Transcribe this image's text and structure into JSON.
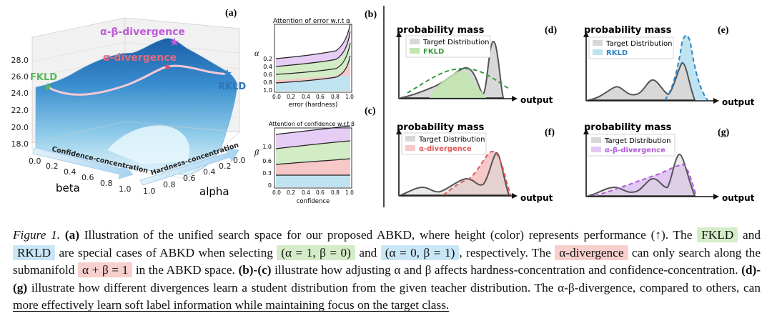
{
  "panel_a": {
    "label": "(a)",
    "points": {
      "fkld": "FKLD",
      "rkld": "RKLD",
      "alpha_div": "α-divergence",
      "alpha_beta_div": "α-β-divergence"
    },
    "z_ticks": [
      "28.0",
      "26.0",
      "24.0",
      "22.0",
      "20.0",
      "18.0"
    ],
    "beta_ticks": [
      "0.0",
      "0.2",
      "0.4",
      "0.6",
      "0.8",
      "1.0"
    ],
    "alpha_ticks": [
      "1.0",
      "0.8",
      "0.6",
      "0.4",
      "0.2",
      "0.0"
    ],
    "beta_label": "beta",
    "alpha_label": "alpha",
    "confidence_arrow": "Confidence-concentration",
    "hardness_arrow": "Hardness-concentration"
  },
  "panel_b": {
    "label": "(b)",
    "title": "Attention of error w.r.t α",
    "ylabel": "α",
    "xlabel": "error (hardness)",
    "y_ticks": [
      "0.2",
      "0.4",
      "0.6",
      "0.8",
      "1.0"
    ],
    "x_ticks": [
      "0.0",
      "0.2",
      "0.4",
      "0.6",
      "0.8",
      "1.0"
    ]
  },
  "panel_c": {
    "label": "(c)",
    "title": "Attention of confidence w.r.t β",
    "ylabel": "β",
    "xlabel": "confidence",
    "y_ticks": [
      "1.0",
      "0.6",
      "0.3",
      "0"
    ],
    "x_ticks": [
      "0.0",
      "0.2",
      "0.4",
      "0.6",
      "0.8",
      "1.0"
    ]
  },
  "distribution_panels": {
    "y_label": "probability mass",
    "x_label": "output",
    "target_legend": "Target Distribution",
    "d": {
      "label": "(d)",
      "legend": "FKLD"
    },
    "e": {
      "label": "(e)",
      "legend": "RKLD"
    },
    "f": {
      "label": "(f)",
      "legend": "α-divergence"
    },
    "g": {
      "label": "(g)",
      "legend": "α-β-divergence"
    }
  },
  "colors": {
    "fkld": "#3a9a3a",
    "rkld": "#2f86c8",
    "alpha_div": "#e05a5a",
    "alpha_beta_div": "#b05ad8",
    "surface_top": "#1f74b8",
    "surface_bottom": "#dff3fb"
  },
  "caption": {
    "figure_label": "Figure 1.",
    "a_label": "(a)",
    "text1": " Illustration of the unified search space for our proposed ABKD, where height (color) represents performance (↑). The ",
    "fkld": "FKLD",
    "text2": " and ",
    "rkld": "RKLD",
    "text3": " are special cases of ABKD when selecting ",
    "case1": "(α = 1, β = 0)",
    "text4": " and ",
    "case2": "(α = 0, β = 1)",
    "text5": ", respectively. The ",
    "alpha_div": "α-divergence",
    "text6": " can only search along the submanifold ",
    "submanifold": "α + β = 1",
    "text7": " in the ABKD space. ",
    "bc_label": "(b)-(c)",
    "text8": " illustrate how adjusting α and β affects hardness-concentration and confidence-concentration. ",
    "dg_label": "(d)-(g)",
    "text9": " illustrate how different divergences learn a student distribution from the given teacher distribution. The α-β-divergence, compared to others, can ",
    "underlined": "more effectively learn soft label information while maintaining focus on the target class."
  }
}
